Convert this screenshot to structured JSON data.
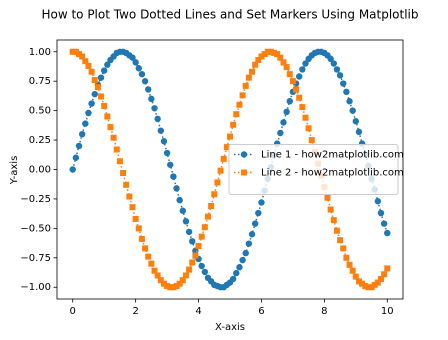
{
  "chart_data": {
    "type": "line",
    "title": "How to Plot Two Dotted Lines and Set Markers Using Matplotlib",
    "xlabel": "X-axis",
    "ylabel": "Y-axis",
    "x": [
      0,
      0.1,
      0.2,
      0.3,
      0.4,
      0.5,
      0.6,
      0.7,
      0.8,
      0.9,
      1,
      1.1,
      1.2,
      1.3,
      1.4,
      1.5,
      1.6,
      1.7,
      1.8,
      1.9,
      2,
      2.1,
      2.2,
      2.3,
      2.4,
      2.5,
      2.6,
      2.7,
      2.8,
      2.9,
      3,
      3.1,
      3.2,
      3.3,
      3.4,
      3.5,
      3.6,
      3.7,
      3.8,
      3.9,
      4,
      4.1,
      4.2,
      4.3,
      4.4,
      4.5,
      4.6,
      4.7,
      4.8,
      4.9,
      5,
      5.1,
      5.2,
      5.3,
      5.4,
      5.5,
      5.6,
      5.7,
      5.8,
      5.9,
      6,
      6.1,
      6.2,
      6.3,
      6.4,
      6.5,
      6.6,
      6.7,
      6.8,
      6.9,
      7,
      7.1,
      7.2,
      7.3,
      7.4,
      7.5,
      7.6,
      7.7,
      7.8,
      7.9,
      8,
      8.1,
      8.2,
      8.3,
      8.4,
      8.5,
      8.6,
      8.7,
      8.8,
      8.9,
      9,
      9.1,
      9.2,
      9.3,
      9.4,
      9.5,
      9.6,
      9.7,
      9.8,
      9.9,
      10
    ],
    "series": [
      {
        "name": "Line 1 - how2matplotlib.com",
        "color": "#1f77b4",
        "marker": "circle",
        "values": [
          0,
          0.1,
          0.2,
          0.3,
          0.39,
          0.48,
          0.56,
          0.64,
          0.72,
          0.78,
          0.84,
          0.89,
          0.93,
          0.96,
          0.99,
          1,
          1,
          0.99,
          0.97,
          0.95,
          0.91,
          0.86,
          0.81,
          0.75,
          0.68,
          0.6,
          0.52,
          0.43,
          0.33,
          0.24,
          0.14,
          0.04,
          -0.06,
          -0.16,
          -0.26,
          -0.35,
          -0.44,
          -0.53,
          -0.61,
          -0.69,
          -0.76,
          -0.82,
          -0.87,
          -0.92,
          -0.95,
          -0.98,
          -0.99,
          -1,
          -1,
          -0.98,
          -0.96,
          -0.93,
          -0.88,
          -0.83,
          -0.77,
          -0.71,
          -0.63,
          -0.55,
          -0.46,
          -0.37,
          -0.28,
          -0.18,
          -0.08,
          0.02,
          0.12,
          0.22,
          0.31,
          0.4,
          0.49,
          0.58,
          0.66,
          0.73,
          0.79,
          0.85,
          0.9,
          0.94,
          0.97,
          0.99,
          1,
          1,
          0.99,
          0.97,
          0.94,
          0.9,
          0.85,
          0.8,
          0.73,
          0.66,
          0.58,
          0.5,
          0.41,
          0.32,
          0.22,
          0.13,
          0.03,
          -0.08,
          -0.17,
          -0.27,
          -0.37,
          -0.46,
          -0.54
        ]
      },
      {
        "name": "Line 2 - how2matplotlib.com",
        "color": "#ff7f0e",
        "marker": "square",
        "values": [
          1,
          1,
          0.98,
          0.96,
          0.92,
          0.88,
          0.83,
          0.76,
          0.7,
          0.62,
          0.54,
          0.45,
          0.36,
          0.27,
          0.17,
          0.07,
          -0.03,
          -0.13,
          -0.23,
          -0.32,
          -0.42,
          -0.5,
          -0.59,
          -0.67,
          -0.74,
          -0.8,
          -0.86,
          -0.9,
          -0.94,
          -0.97,
          -0.99,
          -1,
          -1,
          -0.99,
          -0.97,
          -0.94,
          -0.9,
          -0.85,
          -0.79,
          -0.73,
          -0.65,
          -0.57,
          -0.49,
          -0.4,
          -0.31,
          -0.21,
          -0.11,
          -0.01,
          0.09,
          0.19,
          0.28,
          0.38,
          0.47,
          0.55,
          0.63,
          0.71,
          0.78,
          0.83,
          0.89,
          0.93,
          0.96,
          0.98,
          1,
          1,
          0.99,
          0.98,
          0.95,
          0.91,
          0.87,
          0.81,
          0.75,
          0.68,
          0.61,
          0.53,
          0.44,
          0.35,
          0.25,
          0.15,
          0.05,
          -0.05,
          -0.15,
          -0.24,
          -0.34,
          -0.43,
          -0.52,
          -0.6,
          -0.67,
          -0.75,
          -0.81,
          -0.86,
          -0.91,
          -0.95,
          -0.97,
          -0.99,
          -1,
          -1,
          -0.98,
          -0.96,
          -0.93,
          -0.89,
          -0.84
        ]
      }
    ],
    "xlim": [
      -0.5,
      10.5
    ],
    "ylim": [
      -1.1,
      1.1
    ],
    "xticks": [
      0,
      2,
      4,
      6,
      8,
      10
    ],
    "yticks": [
      {
        "value": -1,
        "label": "−1.00"
      },
      {
        "value": -0.75,
        "label": "−0.75"
      },
      {
        "value": -0.5,
        "label": "−0.50"
      },
      {
        "value": -0.25,
        "label": "−0.25"
      },
      {
        "value": 0,
        "label": "0.00"
      },
      {
        "value": 0.25,
        "label": "0.25"
      },
      {
        "value": 0.5,
        "label": "0.50"
      },
      {
        "value": 0.75,
        "label": "0.75"
      },
      {
        "value": 1,
        "label": "1.00"
      }
    ],
    "line_style": "dotted",
    "legend": "center right",
    "grid": false
  }
}
